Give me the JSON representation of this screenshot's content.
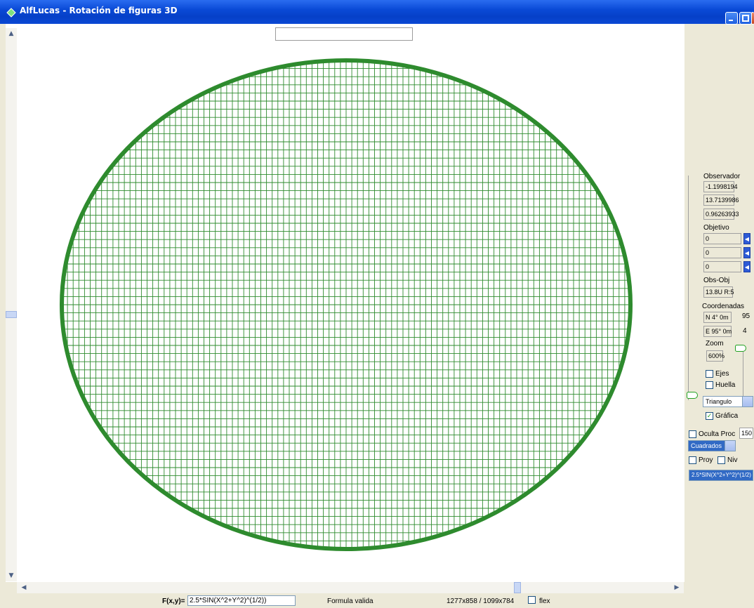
{
  "window": {
    "title": "AlfLucas - Rotación de figuras 3D"
  },
  "sphere": {
    "line_color": "#2e8b2e",
    "meridians": 100,
    "parallels": 60
  },
  "scroll": {
    "up": "▲",
    "down": "▼",
    "left": "◀",
    "right": "▶"
  },
  "status": {
    "formula_label": "F(x,y)=",
    "formula_value": "2.5*SIN(X^2+Y^2)^(1/2))",
    "validity": "Formula valida",
    "resolution": "1277x858 / 1099x784",
    "flex_label": "flex"
  },
  "panel": {
    "observer_label": "Observador",
    "observer": [
      "-1.1998194",
      "13.7139986",
      "0.96263933"
    ],
    "target_label": "Objetivo",
    "target": [
      "0",
      "0",
      "0"
    ],
    "target_btn": "◀",
    "obsobj_label": "Obs-Obj",
    "obsobj_value": "13.8U R:5",
    "coords_label": "Coordenadas",
    "coord_n": "N 4° 0m",
    "coord_n_side": "95",
    "coord_e": "E 95° 0m",
    "coord_e_side": "4",
    "zoom_label": "Zoom",
    "zoom_value": "600%",
    "ejes_label": "Ejes",
    "huella_label": "Huella",
    "shape_select": "Triangulo",
    "grafica_label": "Gráfica",
    "oculta_label": "Oculta Proc",
    "oculta_value": "150",
    "style_select": "Cuadrados",
    "proy_label": "Proy",
    "niv_label": "Niv",
    "formula_select": "2.5*SIN(X^2+Y^2)^(1/2)"
  }
}
